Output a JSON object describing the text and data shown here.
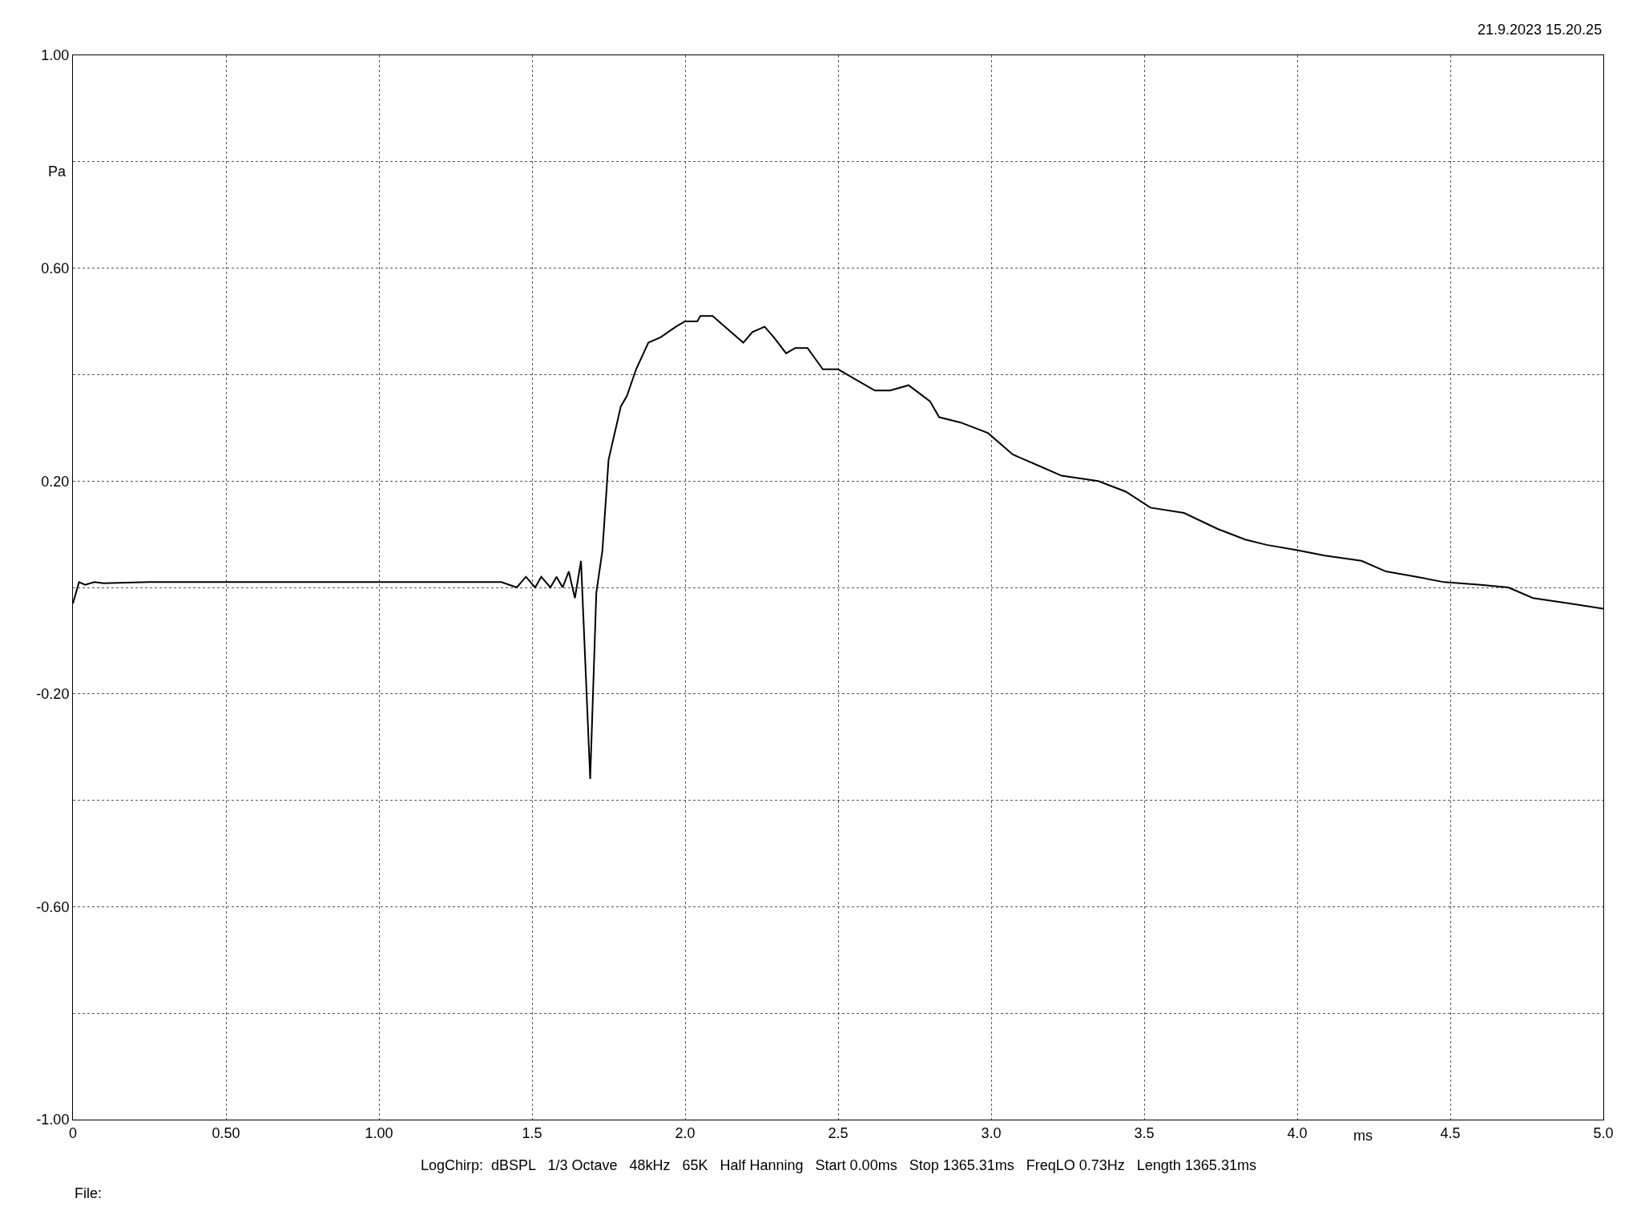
{
  "chart_data": {
    "type": "line",
    "xlabel": "ms",
    "ylabel": "Pa",
    "annotations": [
      "21.9.2023 15.20.25",
      "LogChirp:  dBSPL   1/3 Octave   48kHz   65K   Half Hanning   Start 0.00ms   Stop 1365.31ms   FreqLO 0.73Hz   Length 1365.31ms",
      "File:"
    ],
    "x": [
      0,
      0.02,
      0.04,
      0.07,
      0.1,
      0.25,
      1.0,
      1.2,
      1.3,
      1.4,
      1.45,
      1.48,
      1.51,
      1.53,
      1.56,
      1.58,
      1.6,
      1.62,
      1.64,
      1.66,
      1.69,
      1.71,
      1.73,
      1.75,
      1.79,
      1.81,
      1.84,
      1.88,
      1.92,
      1.97,
      2.0,
      2.04,
      2.05,
      2.09,
      2.11,
      2.15,
      2.19,
      2.22,
      2.26,
      2.29,
      2.33,
      2.36,
      2.4,
      2.45,
      2.5,
      2.56,
      2.62,
      2.67,
      2.73,
      2.8,
      2.83,
      2.9,
      2.99,
      3.07,
      3.15,
      3.23,
      3.35,
      3.44,
      3.52,
      3.63,
      3.74,
      3.83,
      3.9,
      4.0,
      4.09,
      4.21,
      4.29,
      4.39,
      4.48,
      4.6,
      4.69,
      4.77,
      4.89,
      5.0
    ],
    "series": [
      {
        "color": "#000000",
        "values": [
          -0.03,
          0.01,
          0.005,
          0.01,
          0.008,
          0.01,
          0.01,
          0.01,
          0.01,
          0.01,
          0.0,
          0.02,
          0.0,
          0.02,
          0.0,
          0.02,
          0.0,
          0.03,
          -0.02,
          0.05,
          -0.36,
          -0.01,
          0.07,
          0.24,
          0.34,
          0.36,
          0.41,
          0.46,
          0.47,
          0.49,
          0.5,
          0.5,
          0.51,
          0.51,
          0.5,
          0.48,
          0.46,
          0.48,
          0.49,
          0.47,
          0.44,
          0.45,
          0.45,
          0.41,
          0.41,
          0.39,
          0.37,
          0.37,
          0.38,
          0.35,
          0.32,
          0.31,
          0.29,
          0.25,
          0.23,
          0.21,
          0.2,
          0.18,
          0.15,
          0.14,
          0.11,
          0.09,
          0.08,
          0.07,
          0.06,
          0.05,
          0.03,
          0.02,
          0.01,
          0.005,
          0.0,
          -0.02,
          -0.03,
          -0.04
        ]
      }
    ],
    "xlim": [
      0,
      5
    ],
    "ylim": [
      -1,
      1
    ],
    "xticks": [
      0,
      {
        "value": 0.5,
        "label": "0.50"
      },
      {
        "value": 1,
        "label": "1.00"
      },
      1.5,
      {
        "value": 2,
        "label": "2.0"
      },
      2.5,
      {
        "value": 3,
        "label": "3.0"
      },
      3.5,
      {
        "value": 4,
        "label": "4.0"
      },
      4.5,
      {
        "value": 5,
        "label": "5.0"
      }
    ],
    "yticks": [
      {
        "value": 1,
        "label": "1.00"
      },
      {
        "value": 0.8,
        "label": null
      },
      {
        "value": 0.6,
        "label": "0.60"
      },
      {
        "value": 0.4,
        "label": null
      },
      {
        "value": 0.2,
        "label": "0.20"
      },
      {
        "value": 0,
        "label": null
      },
      {
        "value": -0.2,
        "label": "-0.20"
      },
      {
        "value": -0.4,
        "label": null
      },
      {
        "value": -0.6,
        "label": "-0.60"
      },
      {
        "value": -0.8,
        "label": null
      },
      {
        "value": -1,
        "label": "-1.00"
      }
    ],
    "grid": true,
    "marker": "none",
    "line_style": "solid"
  }
}
